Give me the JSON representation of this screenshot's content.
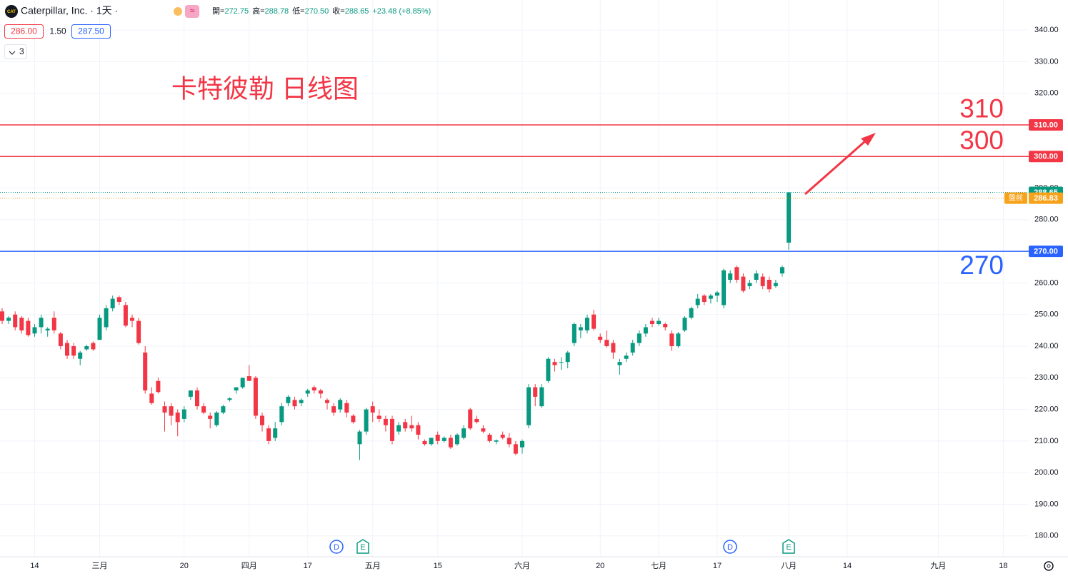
{
  "header": {
    "symbol": "Caterpillar, Inc. · 1天 ·",
    "ohlc": [
      {
        "k": "開=",
        "v": "272.75"
      },
      {
        "k": "高=",
        "v": "288.78"
      },
      {
        "k": "低=",
        "v": "270.50"
      },
      {
        "k": "收=",
        "v": "288.65"
      },
      {
        "k": "",
        "v": "+23.48 (+8.85%)"
      }
    ],
    "bid": "286.00",
    "spread": "1.50",
    "ask": "287.50",
    "indicator_count": "3"
  },
  "chart_data": {
    "type": "candlestick",
    "annotation": "卡特彼勒 日线图",
    "up_color": "#089981",
    "down_color": "#f23645",
    "grid": true,
    "ylim": [
      173.4,
      349.5
    ],
    "yticks": [
      {
        "value": 180,
        "label": "180.00"
      },
      {
        "value": 190,
        "label": "190.00"
      },
      {
        "value": 200,
        "label": "200.00"
      },
      {
        "value": 210,
        "label": "210.00"
      },
      {
        "value": 220,
        "label": "220.00"
      },
      {
        "value": 230,
        "label": "230.00"
      },
      {
        "value": 240,
        "label": "240.00"
      },
      {
        "value": 250,
        "label": "250.00"
      },
      {
        "value": 260,
        "label": "260.00"
      },
      {
        "value": 270,
        "label": "270.00"
      },
      {
        "value": 280,
        "label": "280.00"
      },
      {
        "value": 290,
        "label": "290.00"
      },
      {
        "value": 300,
        "label": "300.00"
      },
      {
        "value": 310,
        "label": "310.00"
      },
      {
        "value": 320,
        "label": "320.00"
      },
      {
        "value": 330,
        "label": "330.00"
      },
      {
        "value": 340,
        "label": "340.00"
      }
    ],
    "categories": [
      null,
      null,
      null,
      null,
      null,
      "14",
      null,
      null,
      null,
      null,
      null,
      null,
      null,
      null,
      null,
      "三月",
      null,
      null,
      null,
      null,
      null,
      null,
      null,
      null,
      null,
      null,
      null,
      null,
      "20",
      null,
      null,
      null,
      null,
      null,
      null,
      null,
      null,
      null,
      "四月",
      null,
      null,
      null,
      null,
      null,
      null,
      null,
      null,
      "17",
      null,
      null,
      null,
      null,
      null,
      null,
      null,
      null,
      null,
      "五月",
      null,
      null,
      null,
      null,
      null,
      null,
      null,
      null,
      null,
      "15",
      null,
      null,
      null,
      null,
      null,
      null,
      null,
      null,
      null,
      null,
      null,
      null,
      "六月",
      null,
      null,
      null,
      null,
      null,
      null,
      null,
      null,
      null,
      null,
      null,
      "20",
      null,
      null,
      null,
      null,
      null,
      null,
      null,
      null,
      "七月",
      null,
      null,
      null,
      null,
      null,
      null,
      null,
      null,
      "17",
      null,
      null,
      null,
      null,
      null,
      null,
      null,
      null,
      null,
      null,
      "八月",
      null,
      null,
      null,
      null,
      null,
      null,
      null,
      null,
      "14",
      null,
      null,
      null,
      null,
      null,
      null,
      null,
      null,
      null,
      null,
      null,
      null,
      null,
      "九月",
      null,
      null,
      null,
      null,
      null,
      null,
      null,
      null,
      null,
      "18"
    ],
    "candles": [
      {
        "open": 251,
        "high": 252,
        "low": 247,
        "close": 248
      },
      {
        "open": 248,
        "high": 249.5,
        "low": 247,
        "close": 249
      },
      {
        "open": 250,
        "high": 251,
        "low": 245,
        "close": 246
      },
      {
        "open": 249,
        "high": 249.5,
        "low": 244,
        "close": 245
      },
      {
        "open": 248,
        "high": 249,
        "low": 243,
        "close": 243.5
      },
      {
        "open": 244,
        "high": 247,
        "low": 243,
        "close": 246
      },
      {
        "open": 246,
        "high": 250,
        "low": 244,
        "close": 249
      },
      {
        "open": 245,
        "high": 246,
        "low": 243,
        "close": 245.5
      },
      {
        "open": 249,
        "high": 251,
        "low": 244,
        "close": 245
      },
      {
        "open": 244,
        "high": 244.5,
        "low": 239,
        "close": 240
      },
      {
        "open": 241,
        "high": 242,
        "low": 236,
        "close": 237
      },
      {
        "open": 240,
        "high": 241,
        "low": 236,
        "close": 237
      },
      {
        "open": 236,
        "high": 238.5,
        "low": 234,
        "close": 238
      },
      {
        "open": 239,
        "high": 240.5,
        "low": 238.5,
        "close": 240
      },
      {
        "open": 241,
        "high": 241.5,
        "low": 238.5,
        "close": 239
      },
      {
        "open": 242,
        "high": 250,
        "low": 242,
        "close": 249
      },
      {
        "open": 246,
        "high": 253,
        "low": 245,
        "close": 252
      },
      {
        "open": 252,
        "high": 256,
        "low": 251,
        "close": 255
      },
      {
        "open": 255.5,
        "high": 256,
        "low": 253,
        "close": 254
      },
      {
        "open": 253,
        "high": 254,
        "low": 246,
        "close": 246.5
      },
      {
        "open": 249,
        "high": 250,
        "low": 246,
        "close": 248
      },
      {
        "open": 248,
        "high": 249,
        "low": 240.5,
        "close": 241
      },
      {
        "open": 238,
        "high": 240,
        "low": 225,
        "close": 226
      },
      {
        "open": 225,
        "high": 227,
        "low": 221.5,
        "close": 222
      },
      {
        "open": 229,
        "high": 230,
        "low": 225,
        "close": 225.5
      },
      {
        "open": 221,
        "high": 222.5,
        "low": 213,
        "close": 219
      },
      {
        "open": 221,
        "high": 222,
        "low": 215,
        "close": 218
      },
      {
        "open": 219,
        "high": 220,
        "low": 211.5,
        "close": 216
      },
      {
        "open": 217,
        "high": 221,
        "low": 216,
        "close": 220
      },
      {
        "open": 224,
        "high": 226,
        "low": 223,
        "close": 226
      },
      {
        "open": 226,
        "high": 227,
        "low": 220,
        "close": 221
      },
      {
        "open": 221,
        "high": 222,
        "low": 218.5,
        "close": 219
      },
      {
        "open": 218,
        "high": 219,
        "low": 214,
        "close": 217
      },
      {
        "open": 215,
        "high": 219.5,
        "low": 214.5,
        "close": 219
      },
      {
        "open": 219,
        "high": 221.5,
        "low": 218.5,
        "close": 221
      },
      {
        "open": 223,
        "high": 223.8,
        "low": 222.5,
        "close": 223.5
      },
      {
        "open": 226,
        "high": 227,
        "low": 225,
        "close": 227
      },
      {
        "open": 227,
        "high": 230,
        "low": 226.5,
        "close": 230
      },
      {
        "open": 230.5,
        "high": 234,
        "low": 229,
        "close": 229
      },
      {
        "open": 230,
        "high": 230.5,
        "low": 217,
        "close": 218
      },
      {
        "open": 218,
        "high": 219,
        "low": 213,
        "close": 215
      },
      {
        "open": 214,
        "high": 215,
        "low": 209,
        "close": 210
      },
      {
        "open": 211,
        "high": 216,
        "low": 210,
        "close": 214
      },
      {
        "open": 216,
        "high": 222,
        "low": 215,
        "close": 221
      },
      {
        "open": 222,
        "high": 224.5,
        "low": 221,
        "close": 224
      },
      {
        "open": 223,
        "high": 224,
        "low": 220,
        "close": 221
      },
      {
        "open": 222,
        "high": 223.5,
        "low": 221,
        "close": 223
      },
      {
        "open": 225,
        "high": 226.5,
        "low": 224,
        "close": 226
      },
      {
        "open": 227,
        "high": 227.5,
        "low": 225,
        "close": 226
      },
      {
        "open": 226,
        "high": 226.5,
        "low": 223.5,
        "close": 225
      },
      {
        "open": 223,
        "high": 223.5,
        "low": 220,
        "close": 222
      },
      {
        "open": 221,
        "high": 222,
        "low": 218,
        "close": 219
      },
      {
        "open": 220,
        "high": 223.5,
        "low": 219,
        "close": 223
      },
      {
        "open": 222,
        "high": 223,
        "low": 217.5,
        "close": 219
      },
      {
        "open": 218,
        "high": 218.5,
        "low": 215.5,
        "close": 216
      },
      {
        "open": 209,
        "high": 213.5,
        "low": 204,
        "close": 213
      },
      {
        "open": 213,
        "high": 220.5,
        "low": 212,
        "close": 220
      },
      {
        "open": 221,
        "high": 222.5,
        "low": 216,
        "close": 219
      },
      {
        "open": 218,
        "high": 220,
        "low": 216,
        "close": 217
      },
      {
        "open": 217,
        "high": 218,
        "low": 213,
        "close": 215
      },
      {
        "open": 217,
        "high": 218,
        "low": 209,
        "close": 210
      },
      {
        "open": 213,
        "high": 216,
        "low": 212,
        "close": 215
      },
      {
        "open": 216,
        "high": 217,
        "low": 213,
        "close": 214
      },
      {
        "open": 215,
        "high": 218,
        "low": 213,
        "close": 214
      },
      {
        "open": 215,
        "high": 216,
        "low": 210.5,
        "close": 212
      },
      {
        "open": 210,
        "high": 210.5,
        "low": 208.5,
        "close": 209
      },
      {
        "open": 209,
        "high": 211,
        "low": 208.5,
        "close": 211
      },
      {
        "open": 212,
        "high": 213,
        "low": 209,
        "close": 210
      },
      {
        "open": 210,
        "high": 211.5,
        "low": 209.5,
        "close": 211
      },
      {
        "open": 211,
        "high": 212,
        "low": 207.5,
        "close": 208
      },
      {
        "open": 209,
        "high": 212.5,
        "low": 208.5,
        "close": 212
      },
      {
        "open": 211,
        "high": 215,
        "low": 210.5,
        "close": 214
      },
      {
        "open": 220,
        "high": 220.5,
        "low": 213.5,
        "close": 214
      },
      {
        "open": 217,
        "high": 218,
        "low": 215.5,
        "close": 216
      },
      {
        "open": 214,
        "high": 215,
        "low": 212.5,
        "close": 213
      },
      {
        "open": 212,
        "high": 212.5,
        "low": 209.5,
        "close": 210
      },
      {
        "open": 209.8,
        "high": 210.5,
        "low": 209,
        "close": 210.2
      },
      {
        "open": 212,
        "high": 213,
        "low": 210.5,
        "close": 211
      },
      {
        "open": 211,
        "high": 212.5,
        "low": 208,
        "close": 209
      },
      {
        "open": 209,
        "high": 210,
        "low": 205.5,
        "close": 206
      },
      {
        "open": 208,
        "high": 210.5,
        "low": 206,
        "close": 210
      },
      {
        "open": 215,
        "high": 228,
        "low": 214,
        "close": 227
      },
      {
        "open": 227,
        "high": 228,
        "low": 221,
        "close": 224
      },
      {
        "open": 221,
        "high": 228,
        "low": 220.5,
        "close": 227
      },
      {
        "open": 229,
        "high": 236.5,
        "low": 228.5,
        "close": 236
      },
      {
        "open": 235,
        "high": 236,
        "low": 232,
        "close": 234
      },
      {
        "open": 235,
        "high": 236.5,
        "low": 232.5,
        "close": 235
      },
      {
        "open": 235,
        "high": 238.5,
        "low": 233,
        "close": 238
      },
      {
        "open": 241,
        "high": 247.5,
        "low": 240,
        "close": 247
      },
      {
        "open": 245,
        "high": 247,
        "low": 242.5,
        "close": 246
      },
      {
        "open": 245,
        "high": 250,
        "low": 244,
        "close": 249
      },
      {
        "open": 250,
        "high": 251.5,
        "low": 245,
        "close": 245.5
      },
      {
        "open": 243,
        "high": 244,
        "low": 241,
        "close": 242
      },
      {
        "open": 242,
        "high": 245,
        "low": 239.5,
        "close": 240
      },
      {
        "open": 241,
        "high": 242,
        "low": 236,
        "close": 238
      },
      {
        "open": 234,
        "high": 236,
        "low": 231,
        "close": 235
      },
      {
        "open": 236,
        "high": 238,
        "low": 235,
        "close": 237
      },
      {
        "open": 238,
        "high": 242,
        "low": 237,
        "close": 241
      },
      {
        "open": 241,
        "high": 245,
        "low": 240,
        "close": 244
      },
      {
        "open": 244,
        "high": 247,
        "low": 243,
        "close": 246
      },
      {
        "open": 248,
        "high": 249,
        "low": 246,
        "close": 247
      },
      {
        "open": 247,
        "high": 249,
        "low": 246.5,
        "close": 248
      },
      {
        "open": 247,
        "high": 247.5,
        "low": 245,
        "close": 246
      },
      {
        "open": 244,
        "high": 245,
        "low": 238.5,
        "close": 240
      },
      {
        "open": 240,
        "high": 244.5,
        "low": 239.5,
        "close": 244
      },
      {
        "open": 245,
        "high": 249.5,
        "low": 244.5,
        "close": 249
      },
      {
        "open": 249,
        "high": 252.5,
        "low": 248.5,
        "close": 252
      },
      {
        "open": 253,
        "high": 256.5,
        "low": 252,
        "close": 255
      },
      {
        "open": 256,
        "high": 256.5,
        "low": 253,
        "close": 254
      },
      {
        "open": 255,
        "high": 256.5,
        "low": 253.5,
        "close": 256
      },
      {
        "open": 256,
        "high": 257.5,
        "low": 254,
        "close": 257
      },
      {
        "open": 253,
        "high": 264.5,
        "low": 252,
        "close": 264
      },
      {
        "open": 261,
        "high": 264,
        "low": 260,
        "close": 263
      },
      {
        "open": 265,
        "high": 265.5,
        "low": 260,
        "close": 261
      },
      {
        "open": 262,
        "high": 263,
        "low": 257,
        "close": 257.5
      },
      {
        "open": 259,
        "high": 261,
        "low": 258,
        "close": 260
      },
      {
        "open": 261,
        "high": 264,
        "low": 260,
        "close": 263
      },
      {
        "open": 262,
        "high": 263,
        "low": 258,
        "close": 259
      },
      {
        "open": 261,
        "high": 262,
        "low": 257,
        "close": 258
      },
      {
        "open": 259,
        "high": 261,
        "low": 258.5,
        "close": 260
      },
      {
        "open": 263,
        "high": 265.5,
        "low": 262,
        "close": 265
      },
      {
        "open": 272.75,
        "high": 288.78,
        "low": 270.5,
        "close": 288.65
      },
      null,
      null,
      null,
      null,
      null,
      null,
      null,
      null,
      null,
      null,
      null,
      null,
      null,
      null,
      null,
      null,
      null,
      null,
      null,
      null,
      null,
      null,
      null,
      null,
      null,
      null,
      null,
      null,
      null,
      null,
      null,
      null,
      null
    ],
    "hlines": [
      {
        "value": 310,
        "label": "310",
        "axis_label": "310.00",
        "color": "#f23645"
      },
      {
        "value": 300,
        "label": "300",
        "axis_label": "300.00",
        "color": "#f23645"
      },
      {
        "value": 270,
        "label": "270",
        "axis_label": "270.00",
        "color": "#2962ff"
      }
    ],
    "last_price": {
      "value": 288.65,
      "label": "288.65",
      "color": "#089981"
    },
    "premarket": {
      "name": "盤前",
      "value": 286.83,
      "label": "286.83",
      "color": "#f7a21b"
    },
    "events": [
      {
        "label": "D",
        "color": "#2962ff"
      },
      {
        "label": "E",
        "color": "#089981"
      },
      {
        "label": "D",
        "color": "#2962ff"
      },
      {
        "label": "E",
        "color": "#089981"
      }
    ]
  }
}
